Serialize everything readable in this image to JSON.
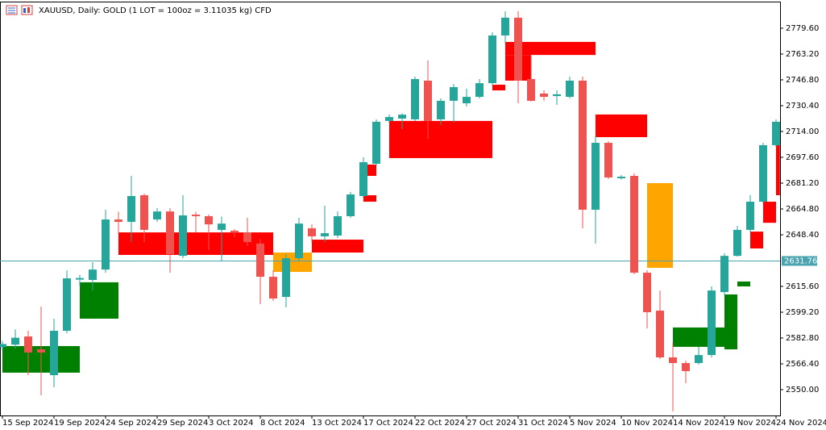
{
  "chart_data": {
    "type": "candlestick",
    "title": "XAUUSD, Daily:  GOLD (1 LOT = 100oz = 3.11035 kg) CFD",
    "categories": [
      "15 Sep 2024",
      null,
      null,
      null,
      "19 Sep 2024",
      null,
      null,
      null,
      "24 Sep 2024",
      null,
      null,
      null,
      "29 Sep 2024",
      null,
      null,
      null,
      "3 Oct 2024",
      null,
      null,
      null,
      "8 Oct 2024",
      null,
      null,
      null,
      "13 Oct 2024",
      null,
      null,
      null,
      "17 Oct 2024",
      null,
      null,
      null,
      "22 Oct 2024",
      null,
      null,
      null,
      "27 Oct 2024",
      null,
      null,
      null,
      "31 Oct 2024",
      null,
      null,
      null,
      "5 Nov 2024",
      null,
      null,
      null,
      "10 Nov 2024",
      null,
      null,
      null,
      "14 Nov 2024",
      null,
      null,
      null,
      "19 Nov 2024",
      null,
      null,
      null,
      "24 Nov 2024"
    ],
    "open": [
      2577,
      2578.6,
      2583.8,
      2575.6,
      2559.2,
      2587.4,
      2619.9,
      2619.7,
      2626.3,
      2658.1,
      2656.6,
      2673.5,
      2658.1,
      2663.2,
      2635,
      2661.2,
      2660.2,
      2651.5,
      2651,
      2649.9,
      2642.8,
      2621.7,
      2608.9,
      2633.5,
      2652.5,
      2647.4,
      2647.9,
      2660.2,
      2673,
      2693.5,
      2720.7,
      2722.2,
      2721.7,
      2746.3,
      2721.7,
      2733.5,
      2731.9,
      2736,
      2744.7,
      2775,
      2786.3,
      2747.3,
      2738.1,
      2736.5,
      2736,
      2746.3,
      2664.3,
      2706.8,
      2684.3,
      2685.8,
      2624.3,
      2600.2,
      2570.5,
      2566.9,
      2566.9,
      2572,
      2612,
      2635,
      2651.5,
      2669.4,
      2705.3
    ],
    "high": [
      2581,
      2588.4,
      2587.4,
      2602.8,
      2595.1,
      2625.8,
      2623,
      2631,
      2664.3,
      2663,
      2685.8,
      2674.5,
      2665.3,
      2665.3,
      2673.5,
      2663,
      2661.2,
      2660,
      2652,
      2659.2,
      2645.8,
      2625.8,
      2636.1,
      2659.2,
      2655,
      2666.9,
      2663.2,
      2675.6,
      2697.6,
      2721.7,
      2724.8,
      2725.5,
      2748.9,
      2759.1,
      2735,
      2744.2,
      2741.2,
      2747.3,
      2777,
      2790.4,
      2790.4,
      2761.7,
      2740.1,
      2740.1,
      2748.9,
      2748.9,
      2711.4,
      2707.8,
      2686.3,
      2687.4,
      2625.8,
      2613,
      2579.7,
      2568.4,
      2577.2,
      2615.6,
      2636.6,
      2654,
      2673.5,
      2706.8,
      2721.7
    ],
    "low": [
      2575,
      2576,
      2559.2,
      2546.4,
      2551.5,
      2585.9,
      2616,
      2613,
      2624.3,
      2649,
      2643.8,
      2643.8,
      2656.5,
      2624.3,
      2633.5,
      2650,
      2638.7,
      2632,
      2647,
      2641.2,
      2604.3,
      2606.4,
      2602.3,
      2632,
      2643.8,
      2643.8,
      2646.3,
      2659.2,
      2672,
      2692.5,
      2719.6,
      2715.5,
      2720.7,
      2709.4,
      2718.1,
      2719.6,
      2729.9,
      2735,
      2743.7,
      2769.4,
      2731.9,
      2733,
      2733.5,
      2730.9,
      2735,
      2652.5,
      2642.8,
      2683.8,
      2683.5,
      2623.3,
      2588.9,
      2569.5,
      2536.2,
      2554.1,
      2565.9,
      2570.5,
      2610.5,
      2634.5,
      2649.9,
      2668.4,
      2704.2
    ],
    "close": [
      2579,
      2583,
      2573.6,
      2573.6,
      2587.4,
      2620.7,
      2620.9,
      2626.3,
      2658.1,
      2656.6,
      2673,
      2651.5,
      2663.2,
      2636.1,
      2660.7,
      2660.2,
      2655,
      2655.5,
      2650,
      2643.8,
      2621.7,
      2607.9,
      2633.5,
      2655.5,
      2647.4,
      2649.4,
      2660.2,
      2674,
      2694.5,
      2720.2,
      2723.2,
      2724.7,
      2747.3,
      2720.7,
      2733.5,
      2742.2,
      2736,
      2744.7,
      2775,
      2786.3,
      2746.3,
      2733.5,
      2736,
      2737.6,
      2746.3,
      2664.3,
      2706.8,
      2684.8,
      2685.3,
      2624.3,
      2599.2,
      2570.5,
      2566.9,
      2561.8,
      2572,
      2613,
      2635,
      2651.5,
      2669.4,
      2705.3,
      2720.2
    ],
    "up_color": "#26a69a",
    "down_color": "#ef5350",
    "zones": [
      {
        "start": 0,
        "end": 6,
        "top": 2577.7,
        "bottom": 2560.8,
        "color": "#008000"
      },
      {
        "start": 6,
        "end": 9,
        "top": 2618.2,
        "bottom": 2595.1,
        "color": "#008000"
      },
      {
        "start": 9,
        "end": 21,
        "top": 2649.9,
        "bottom": 2635.6,
        "color": "#ff0000"
      },
      {
        "start": 21,
        "end": 24,
        "top": 2637.1,
        "bottom": 2624.8,
        "color": "#ffa500"
      },
      {
        "start": 24,
        "end": 28,
        "top": 2645.3,
        "bottom": 2637.1,
        "color": "#ff0000"
      },
      {
        "start": 28,
        "end": 29,
        "top": 2673.5,
        "bottom": 2669.4,
        "color": "#ff0000"
      },
      {
        "start": 28,
        "end": 29,
        "top": 2693,
        "bottom": 2685.8,
        "color": "#ff0000"
      },
      {
        "start": 30,
        "end": 38,
        "top": 2720.7,
        "bottom": 2697.1,
        "color": "#ff0000"
      },
      {
        "start": 38,
        "end": 39,
        "top": 2743.7,
        "bottom": 2740.1,
        "color": "#ff0000"
      },
      {
        "start": 39,
        "end": 46,
        "top": 2770.9,
        "bottom": 2762.6,
        "color": "#ff0000"
      },
      {
        "start": 39,
        "end": 41,
        "top": 2762.6,
        "bottom": 2746.3,
        "color": "#ff0000"
      },
      {
        "start": 46,
        "end": 50,
        "top": 2724.8,
        "bottom": 2710.4,
        "color": "#ff0000"
      },
      {
        "start": 50,
        "end": 52,
        "top": 2681.2,
        "bottom": 2627.4,
        "color": "#ffa500"
      },
      {
        "start": 52,
        "end": 56,
        "top": 2589.5,
        "bottom": 2577.2,
        "color": "#008000"
      },
      {
        "start": 56,
        "end": 57,
        "top": 2610.5,
        "bottom": 2575.6,
        "color": "#008000"
      },
      {
        "start": 57,
        "end": 58,
        "top": 2618.7,
        "bottom": 2615.6,
        "color": "#008000"
      },
      {
        "start": 58,
        "end": 59,
        "top": 2650.4,
        "bottom": 2639.7,
        "color": "#ff0000"
      },
      {
        "start": 59,
        "end": 60,
        "top": 2669.4,
        "bottom": 2656,
        "color": "#ff0000"
      },
      {
        "start": 60,
        "end": 60.3,
        "top": 2705.3,
        "bottom": 2673.5,
        "color": "#ff0000"
      }
    ],
    "current_price": 2631.76,
    "current_price_color": "#4aa3b0",
    "ylim": [
      2533.6,
      2796.5
    ],
    "yticks": [
      {
        "value": 2550,
        "label": "2550.00"
      },
      {
        "value": 2566.4,
        "label": "2566.40"
      },
      {
        "value": 2582.8,
        "label": "2582.80"
      },
      {
        "value": 2599.2,
        "label": "2599.20"
      },
      {
        "value": 2615.6,
        "label": "2615.60"
      },
      {
        "value": 2648.4,
        "label": "2648.40"
      },
      {
        "value": 2664.8,
        "label": "2664.80"
      },
      {
        "value": 2681.2,
        "label": "2681.20"
      },
      {
        "value": 2697.6,
        "label": "2697.60"
      },
      {
        "value": 2714,
        "label": "2714.00"
      },
      {
        "value": 2730.4,
        "label": "2730.40"
      },
      {
        "value": 2746.8,
        "label": "2746.80"
      },
      {
        "value": 2763.2,
        "label": "2763.20"
      },
      {
        "value": 2779.6,
        "label": "2779.60"
      }
    ]
  }
}
